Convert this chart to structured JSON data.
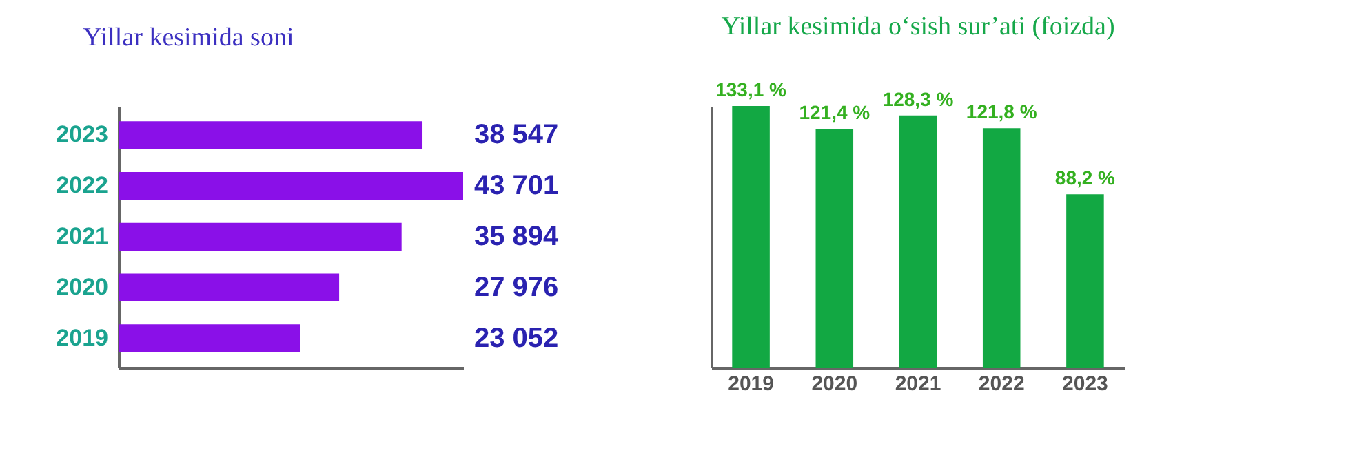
{
  "chart_data": [
    {
      "type": "bar",
      "title": "Yillar kesimida soni",
      "orientation": "horizontal",
      "categories": [
        "2023",
        "2022",
        "2021",
        "2020",
        "2019"
      ],
      "values": [
        38547,
        43701,
        35894,
        27976,
        23052
      ],
      "color": "#8a10e8",
      "value_labels": [
        "38 547",
        "43 701",
        "35 894",
        "27 976",
        "23 052"
      ],
      "tick_labels": "y"
    },
    {
      "type": "bar",
      "title": "Yillar kesimida o‘sish sur’ati (foizda)",
      "categories": [
        "2019",
        "2020",
        "2021",
        "2022",
        "2023"
      ],
      "values": [
        133.1,
        121.4,
        128.3,
        121.8,
        88.2
      ],
      "color": "#12a843",
      "value_labels": [
        "133,1 %",
        "121,4 %",
        "128,3 %",
        "121,8 %",
        "88,2 %"
      ],
      "tick_labels": "x"
    }
  ]
}
